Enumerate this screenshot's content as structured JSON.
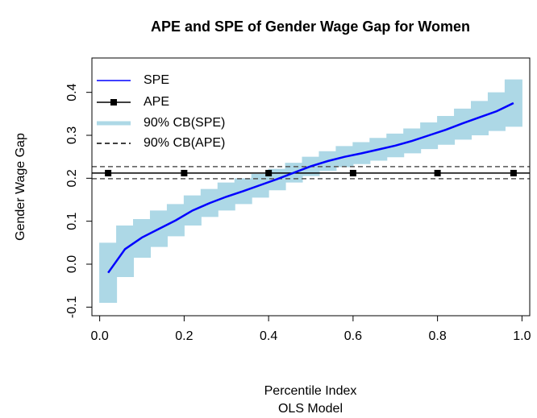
{
  "chart_data": {
    "type": "line",
    "title": "APE and SPE of Gender Wage Gap for Women",
    "xlabel": "Percentile Index",
    "subtitle": "OLS Model",
    "ylabel": "Gender Wage Gap",
    "xlim": [
      -0.0184,
      1.0184
    ],
    "ylim": [
      -0.12,
      0.48
    ],
    "xticks": [
      {
        "value": 0,
        "label": "0.0"
      },
      0.2,
      0.4,
      0.6,
      0.8,
      {
        "value": 1,
        "label": "1.0"
      }
    ],
    "yticks": [
      -0.1,
      {
        "value": 0,
        "label": "0.0"
      },
      0.1,
      0.2,
      0.3,
      0.4
    ],
    "legend": "top-left",
    "series": [
      {
        "name": "SPE",
        "color": "#0000ff",
        "x": [
          0.02,
          0.06,
          0.1,
          0.14,
          0.18,
          0.22,
          0.26,
          0.3,
          0.34,
          0.38,
          0.42,
          0.46,
          0.5,
          0.54,
          0.58,
          0.62,
          0.66,
          0.7,
          0.74,
          0.78,
          0.82,
          0.86,
          0.9,
          0.94,
          0.98
        ],
        "values": [
          -0.02,
          0.035,
          0.062,
          0.082,
          0.102,
          0.125,
          0.142,
          0.157,
          0.17,
          0.184,
          0.198,
          0.213,
          0.228,
          0.24,
          0.25,
          0.258,
          0.267,
          0.276,
          0.287,
          0.3,
          0.313,
          0.328,
          0.342,
          0.356,
          0.375
        ]
      },
      {
        "name": "APE",
        "color": "#000000",
        "x": [
          0.02,
          0.2,
          0.4,
          0.6,
          0.8,
          0.98
        ],
        "values": [
          0.212,
          0.212,
          0.212,
          0.212,
          0.212,
          0.212
        ]
      },
      {
        "name": "90% CB(SPE)",
        "color": "#add8e6",
        "x": [
          0.02,
          0.06,
          0.1,
          0.14,
          0.18,
          0.22,
          0.26,
          0.3,
          0.34,
          0.38,
          0.42,
          0.46,
          0.5,
          0.54,
          0.58,
          0.62,
          0.66,
          0.7,
          0.74,
          0.78,
          0.82,
          0.86,
          0.9,
          0.94,
          0.98
        ],
        "lower": [
          -0.09,
          -0.03,
          0.015,
          0.04,
          0.065,
          0.09,
          0.11,
          0.125,
          0.14,
          0.155,
          0.172,
          0.19,
          0.205,
          0.217,
          0.226,
          0.233,
          0.241,
          0.249,
          0.258,
          0.268,
          0.278,
          0.29,
          0.3,
          0.31,
          0.32
        ],
        "upper": [
          0.05,
          0.09,
          0.105,
          0.125,
          0.14,
          0.16,
          0.175,
          0.19,
          0.2,
          0.21,
          0.222,
          0.236,
          0.25,
          0.263,
          0.275,
          0.284,
          0.294,
          0.304,
          0.316,
          0.33,
          0.345,
          0.362,
          0.38,
          0.4,
          0.43
        ]
      },
      {
        "name": "90% CB(APE)",
        "color": "#000000",
        "lower": 0.199,
        "upper": 0.227
      }
    ]
  }
}
